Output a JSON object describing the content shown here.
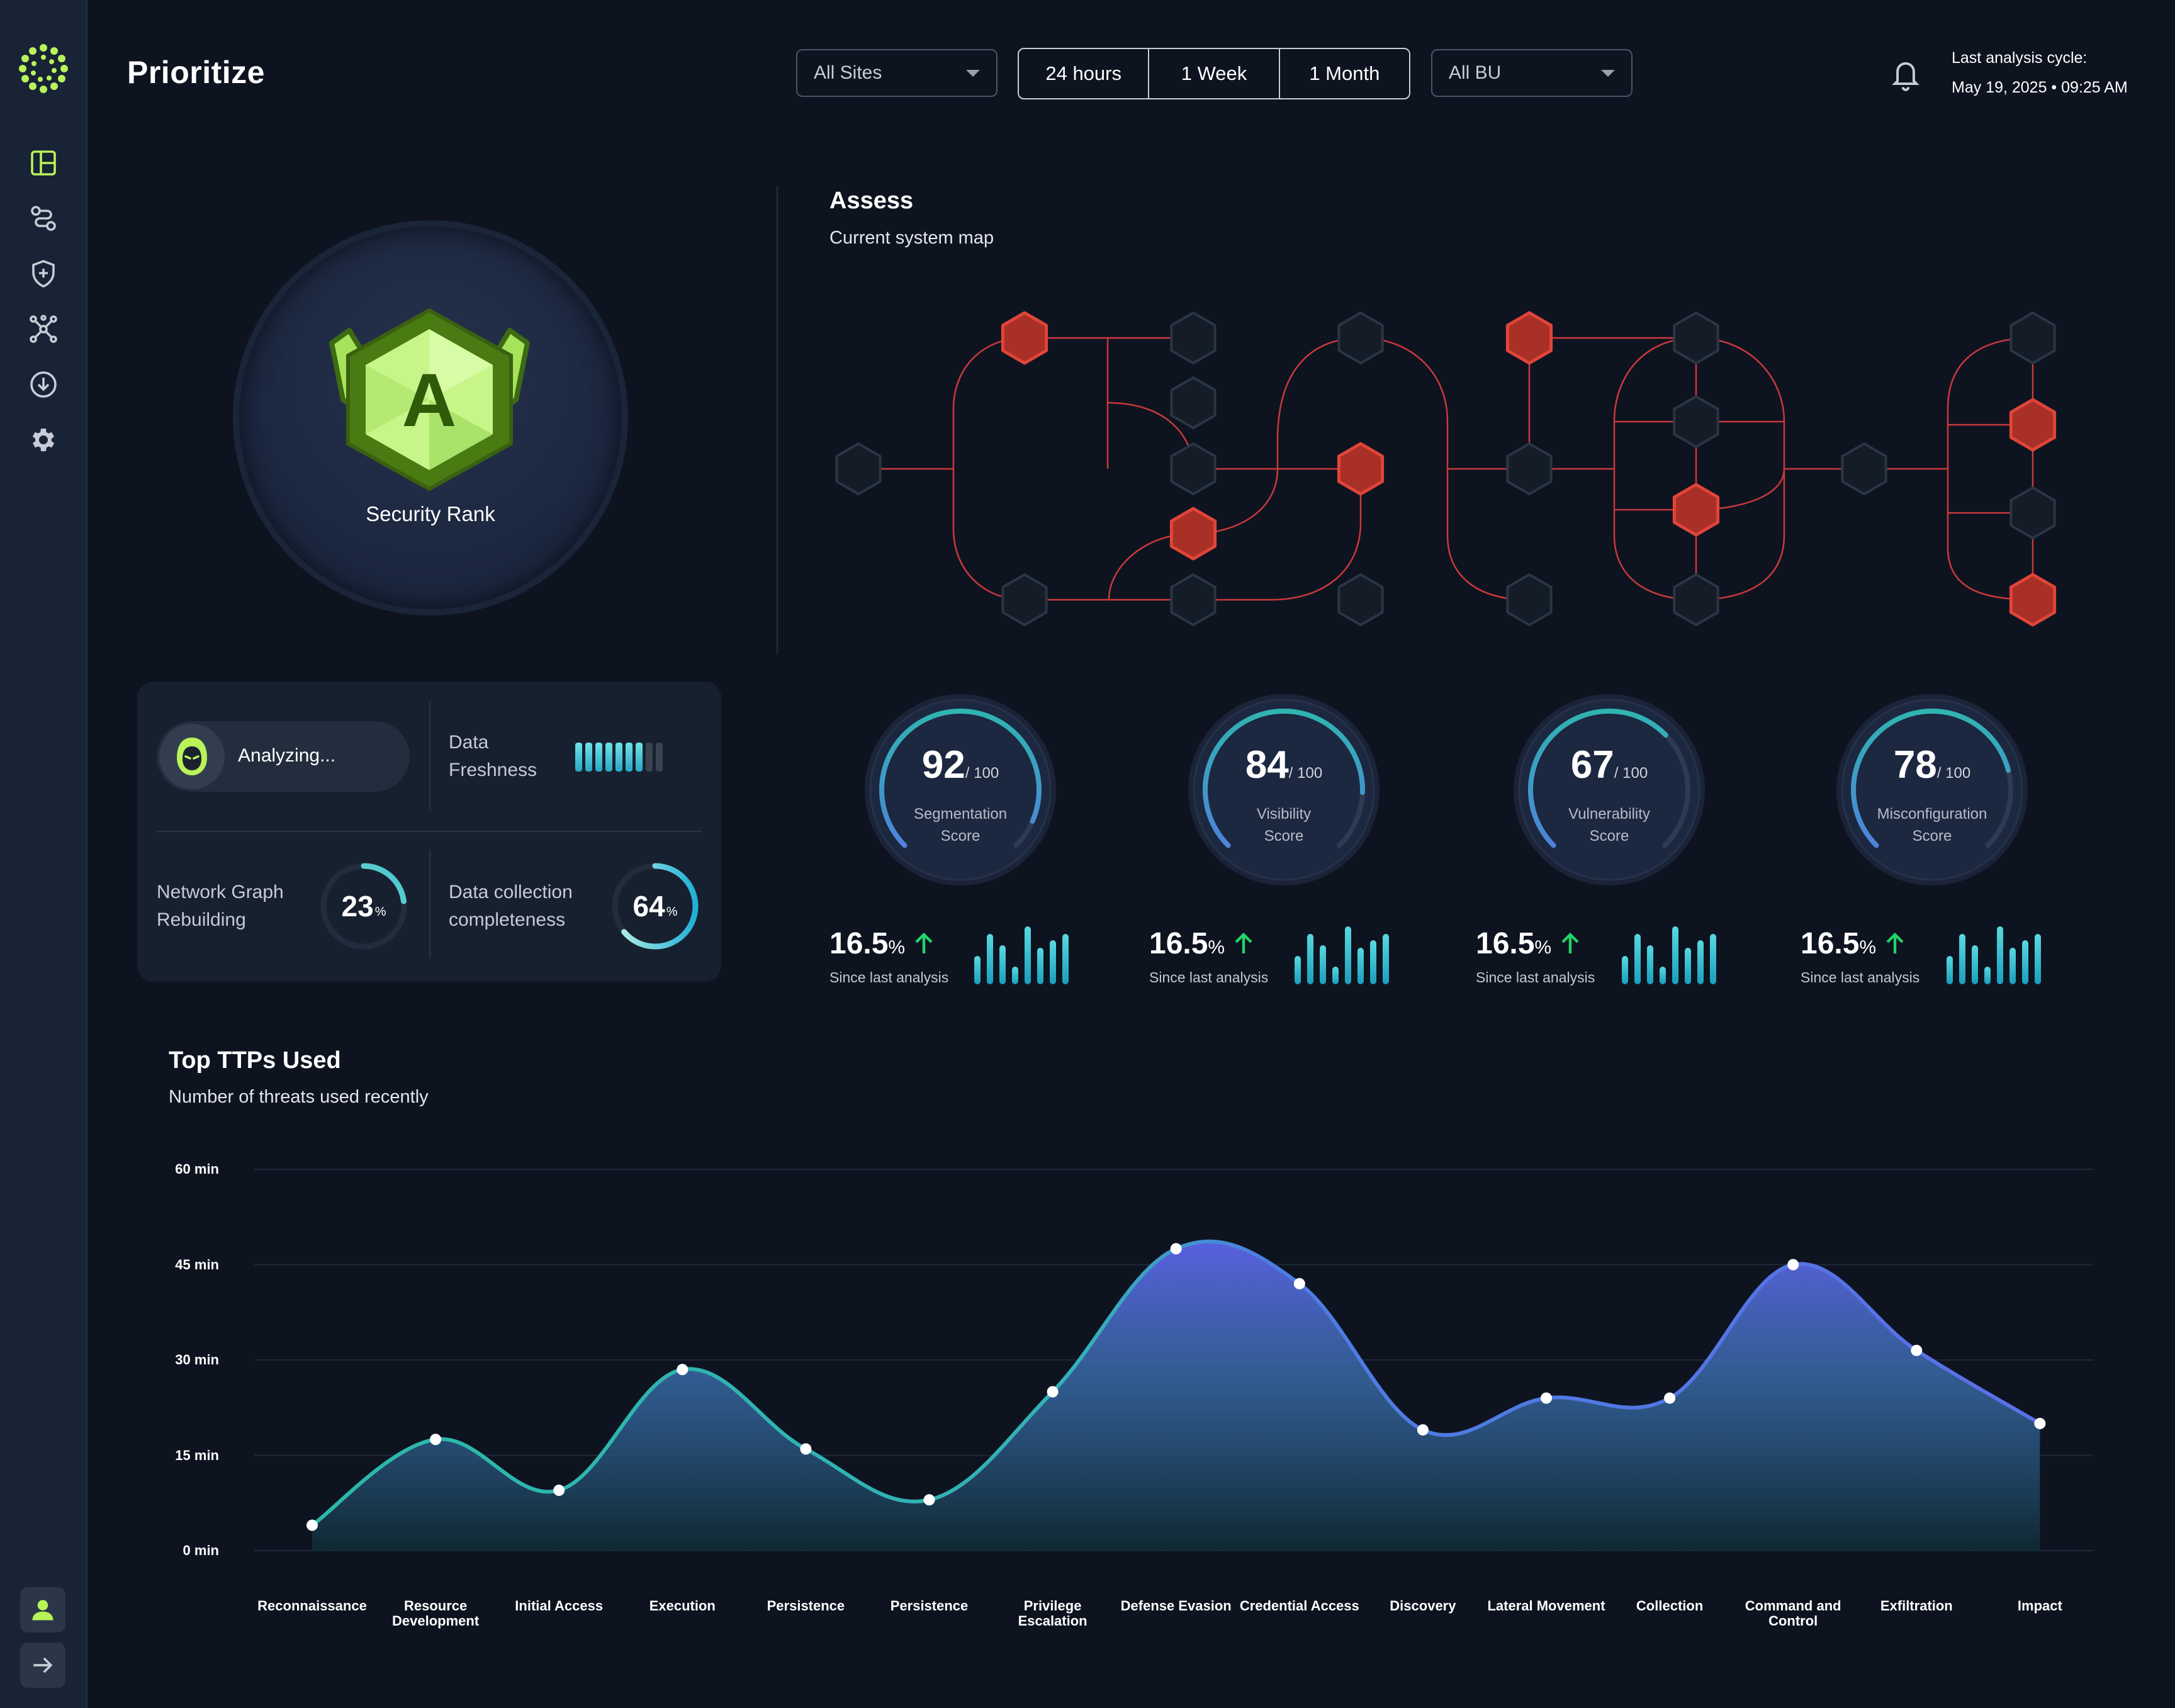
{
  "app": {
    "title": "Prioritize"
  },
  "filters": {
    "sites": "All Sites",
    "time_ranges": [
      "24 hours",
      "1 Week",
      "1 Month"
    ],
    "bu": "All BU"
  },
  "header": {
    "last_cycle_label": "Last analysis cycle:",
    "last_cycle_value": "May 19, 2025 • 09:25 AM"
  },
  "sidebar": {
    "icons": [
      "dashboard-icon",
      "route-icon",
      "shield-icon",
      "network-icon",
      "download-icon",
      "gear-icon"
    ],
    "bottom": [
      "user-icon",
      "logout-icon"
    ]
  },
  "security_rank": {
    "grade": "A",
    "label": "Security Rank"
  },
  "status": {
    "analyzing": "Analyzing...",
    "freshness_label_1": "Data",
    "freshness_label_2": "Freshness",
    "freshness_level": 7,
    "freshness_total": 9,
    "network_label_1": "Network Graph",
    "network_label_2": "Rebuilding",
    "network_value": "23",
    "network_pct": 23,
    "collection_label_1": "Data collection",
    "collection_label_2": "completeness",
    "collection_value": "64",
    "collection_pct": 64,
    "pct_sign": "%"
  },
  "assess": {
    "title": "Assess",
    "subtitle": "Current system map"
  },
  "scores": [
    {
      "value": "92",
      "max": "/ 100",
      "label_1": "Segmentation",
      "label_2": "Score",
      "pct": 92,
      "change": "16.5",
      "change_unit": "%",
      "since": "Since last analysis"
    },
    {
      "value": "84",
      "max": "/ 100",
      "label_1": "Visibility",
      "label_2": "Score",
      "pct": 84,
      "change": "16.5",
      "change_unit": "%",
      "since": "Since last analysis"
    },
    {
      "value": "67",
      "max": "/ 100",
      "label_1": "Vulnerability",
      "label_2": "Score",
      "pct": 67,
      "change": "16.5",
      "change_unit": "%",
      "since": "Since last analysis"
    },
    {
      "value": "78",
      "max": "/ 100",
      "label_1": "Misconfiguration",
      "label_2": "Score",
      "pct": 78,
      "change": "16.5",
      "change_unit": "%",
      "since": "Since last analysis"
    }
  ],
  "ttps": {
    "title": "Top TTPs Used",
    "subtitle": "Number of threats used recently"
  },
  "chart_data": {
    "type": "area",
    "title": "Top TTPs Used",
    "subtitle": "Number of threats used recently",
    "y_ticks": [
      "0 min",
      "15 min",
      "30 min",
      "45 min",
      "60 min"
    ],
    "ylim": [
      0,
      60
    ],
    "categories": [
      "Reconnaissance",
      "Resource Development",
      "Initial Access",
      "Execution",
      "Persistence",
      "Persistence",
      "Privilege Escalation",
      "Defense Evasion",
      "Credential Access",
      "Discovery",
      "Lateral Movement",
      "Collection",
      "Command and Control",
      "Exfiltration",
      "Impact"
    ],
    "values": [
      4,
      17.5,
      9.5,
      28.5,
      16,
      8,
      25,
      47.5,
      42,
      19,
      24,
      24,
      45,
      31.5,
      20
    ],
    "grid": true
  }
}
